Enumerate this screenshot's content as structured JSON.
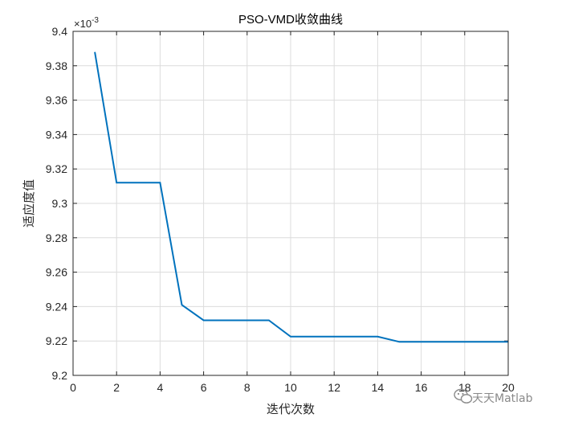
{
  "chart_data": {
    "type": "line",
    "title": "PSO-VMD收敛曲线",
    "xlabel": "迭代次数",
    "ylabel": "适应度值",
    "y_multiplier": "×10^-3",
    "y_exponent_base": "×10",
    "y_exponent": "-3",
    "xlim": [
      0,
      20
    ],
    "ylim": [
      9.2,
      9.4
    ],
    "xticks": [
      0,
      2,
      4,
      6,
      8,
      10,
      12,
      14,
      16,
      18,
      20
    ],
    "yticks": [
      9.2,
      9.22,
      9.24,
      9.26,
      9.28,
      9.3,
      9.32,
      9.34,
      9.36,
      9.38,
      9.4
    ],
    "grid": true,
    "series": [
      {
        "color": "#0072BD",
        "x": [
          1,
          2,
          3,
          4,
          5,
          6,
          7,
          8,
          9,
          10,
          11,
          12,
          13,
          14,
          15,
          16,
          17,
          18,
          19,
          20
        ],
        "values": [
          9.388,
          9.312,
          9.312,
          9.312,
          9.241,
          9.232,
          9.232,
          9.232,
          9.232,
          9.2225,
          9.2225,
          9.2225,
          9.2225,
          9.2225,
          9.2195,
          9.2195,
          9.2195,
          9.2195,
          9.2195,
          9.2195
        ]
      }
    ]
  },
  "watermark": {
    "text": "天天Matlab",
    "icon": "wechat-icon"
  }
}
